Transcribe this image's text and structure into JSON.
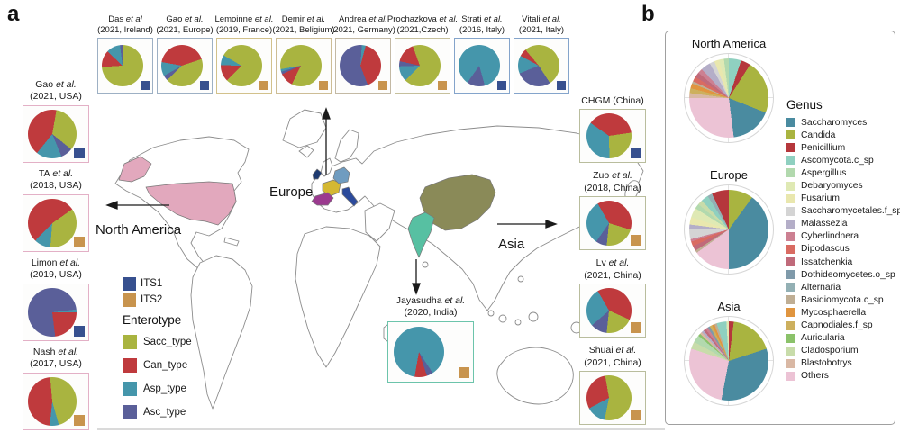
{
  "panels": {
    "a": "a",
    "b": "b"
  },
  "map": {
    "labels": {
      "europe": "Europe",
      "north_america": "North America",
      "asia": "Asia"
    },
    "country_colors": {
      "usa": "#e2a8bd",
      "ireland": "#1e3a70",
      "france": "#d4b832",
      "spain": "#9b3a8f",
      "germany": "#6f9cc0",
      "italy": "#2b4a9b",
      "china": "#8a8a58",
      "india": "#57c0a2"
    }
  },
  "legends": {
    "its": {
      "items": [
        "ITS1",
        "ITS2"
      ]
    },
    "enterotype": {
      "title": "Enterotype",
      "items": [
        "Sacc_type",
        "Can_type",
        "Asp_type",
        "Asc_type"
      ]
    },
    "genus": {
      "title": "Genus",
      "items": [
        "Saccharomyces",
        "Candida",
        "Penicillium",
        "Ascomycota.c_sp",
        "Aspergillus",
        "Debaryomyces",
        "Fusarium",
        "Saccharomycetales.f_sp",
        "Malassezia",
        "Cyberlindnera",
        "Dipodascus",
        "Issatchenkia",
        "Dothideomycetes.o_sp",
        "Alternaria",
        "Basidiomycota.c_sp",
        "Mycosphaerella",
        "Capnodiales.f_sp",
        "Auricularia",
        "Cladosporium",
        "Blastobotrys",
        "Others"
      ]
    }
  },
  "colors": {
    "Sacc_type": "#a9b440",
    "Can_type": "#bf3a3d",
    "Asp_type": "#4596ab",
    "Asc_type": "#5a5f99",
    "ITS1": "#37508f",
    "ITS2": "#c8944e",
    "Saccharomyces": "#4a8ba0",
    "Candida": "#a9b440",
    "Penicillium": "#b5373c",
    "Ascomycota.c_sp": "#8fd0c0",
    "Aspergillus": "#b2d9ae",
    "Debaryomyces": "#dfe9b4",
    "Fusarium": "#e9e7ae",
    "Saccharomycetales.f_sp": "#d4d4d4",
    "Malassezia": "#b4aec8",
    "Cyberlindnera": "#cc8092",
    "Dipodascus": "#d96b62",
    "Issatchenkia": "#c06a7a",
    "Dothideomycetes.o_sp": "#7f9aaa",
    "Alternaria": "#93b0b4",
    "Basidiomycota.c_sp": "#bfae94",
    "Mycosphaerella": "#e0953f",
    "Capnodiales.f_sp": "#cdb05e",
    "Auricularia": "#8bc26a",
    "Cladosporium": "#c8dcaa",
    "Blastobotrys": "#d9b8a4",
    "Others": "#ecc3d5"
  },
  "chart_data": [
    {
      "id": "das-2021-ireland",
      "type": "pie",
      "panel": "a",
      "column": "top",
      "label_name": "Das",
      "label_etal": "et al",
      "label_line2": "(2021, Ireland)",
      "marker": "ITS1",
      "border": "#9db0c4",
      "rotate_deg": 0,
      "unit": "enterotype %",
      "slices": [
        {
          "name": "Sacc_type",
          "value": 74
        },
        {
          "name": "Can_type",
          "value": 13
        },
        {
          "name": "Asp_type",
          "value": 11
        },
        {
          "name": "Asc_type",
          "value": 2
        }
      ]
    },
    {
      "id": "gao-2021-europe",
      "type": "pie",
      "panel": "a",
      "column": "top",
      "label_name": "Gao",
      "label_etal": "et al.",
      "label_line2": "(2021, Europe)",
      "marker": "ITS1",
      "border": "#9db0c4",
      "rotate_deg": -80,
      "unit": "enterotype %",
      "slices": [
        {
          "name": "Can_type",
          "value": 42
        },
        {
          "name": "Sacc_type",
          "value": 43
        },
        {
          "name": "Asc_type",
          "value": 4
        },
        {
          "name": "Asp_type",
          "value": 11
        }
      ]
    },
    {
      "id": "lemoinne-2019-france",
      "type": "pie",
      "panel": "a",
      "column": "top",
      "label_name": "Lemoinne",
      "label_etal": "et al.",
      "label_line2": "(2019, France)",
      "marker": "ITS2",
      "border": "#d2c18b",
      "rotate_deg": -60,
      "unit": "enterotype %",
      "slices": [
        {
          "name": "Sacc_type",
          "value": 79
        },
        {
          "name": "Can_type",
          "value": 13
        },
        {
          "name": "Asp_type",
          "value": 8
        }
      ]
    },
    {
      "id": "demir-2021-belgium",
      "type": "pie",
      "panel": "a",
      "column": "top",
      "label_name": "Demir",
      "label_etal": "et al.",
      "label_line2": "(2021, Beligium)",
      "marker": "ITS2",
      "border": "#cdbd95",
      "rotate_deg": -100,
      "unit": "enterotype %",
      "slices": [
        {
          "name": "Sacc_type",
          "value": 85
        },
        {
          "name": "Can_type",
          "value": 11
        },
        {
          "name": "Asc_type",
          "value": 2
        },
        {
          "name": "Asp_type",
          "value": 2
        }
      ]
    },
    {
      "id": "andrea-2021-germany",
      "type": "pie",
      "panel": "a",
      "column": "top",
      "label_name": "Andrea",
      "label_etal": "et al.",
      "label_line2": "(2021, Germany)",
      "marker": "ITS2",
      "border": "#c3b9a4",
      "rotate_deg": 15,
      "unit": "enterotype %",
      "slices": [
        {
          "name": "Can_type",
          "value": 40
        },
        {
          "name": "Asc_type",
          "value": 57
        },
        {
          "name": "Asp_type",
          "value": 3
        }
      ]
    },
    {
      "id": "prochazkova-2021-czech",
      "type": "pie",
      "panel": "a",
      "column": "top",
      "label_name": "Prochazkova",
      "label_etal": "et al.",
      "label_line2": "(2021,Czech)",
      "marker": "ITS2",
      "border": "#c6c09c",
      "rotate_deg": -20,
      "unit": "enterotype %",
      "slices": [
        {
          "name": "Sacc_type",
          "value": 68
        },
        {
          "name": "Asp_type",
          "value": 12
        },
        {
          "name": "Asc_type",
          "value": 4
        },
        {
          "name": "Can_type",
          "value": 16
        }
      ]
    },
    {
      "id": "strati-2016-italy",
      "type": "pie",
      "panel": "a",
      "column": "top",
      "label_name": "Strati",
      "label_etal": "et al.",
      "label_line2": "(2016, Italy)",
      "marker": "ITS1",
      "border": "#84a4cb",
      "rotate_deg": -145,
      "unit": "enterotype %",
      "slices": [
        {
          "name": "Asp_type",
          "value": 86
        },
        {
          "name": "Asc_type",
          "value": 14
        }
      ]
    },
    {
      "id": "vitali-2021-italy",
      "type": "pie",
      "panel": "a",
      "column": "top",
      "label_name": "Vitali",
      "label_etal": "et al.",
      "label_line2": "(2021, Italy)",
      "marker": "ITS1",
      "border": "#84a4cb",
      "rotate_deg": -40,
      "unit": "enterotype %",
      "slices": [
        {
          "name": "Sacc_type",
          "value": 52
        },
        {
          "name": "Asc_type",
          "value": 28
        },
        {
          "name": "Asp_type",
          "value": 14
        },
        {
          "name": "Can_type",
          "value": 6
        }
      ]
    },
    {
      "id": "gao-2021-usa",
      "type": "pie",
      "panel": "a",
      "column": "left",
      "label_name": "Gao",
      "label_etal": "et al.",
      "label_line2": "(2021, USA)",
      "marker": "ITS1",
      "border": "#e3b0c6",
      "rotate_deg": 10,
      "unit": "enterotype %",
      "slices": [
        {
          "name": "Sacc_type",
          "value": 33
        },
        {
          "name": "Asc_type",
          "value": 8
        },
        {
          "name": "Asp_type",
          "value": 17
        },
        {
          "name": "Can_type",
          "value": 42
        }
      ]
    },
    {
      "id": "ta-2018-usa",
      "type": "pie",
      "panel": "a",
      "column": "left",
      "label_name": "TA",
      "label_etal": "et al.",
      "label_line2": "(2018, USA)",
      "marker": "ITS2",
      "border": "#e3b0c6",
      "rotate_deg": 55,
      "unit": "enterotype %",
      "slices": [
        {
          "name": "Sacc_type",
          "value": 36
        },
        {
          "name": "Asp_type",
          "value": 11
        },
        {
          "name": "Can_type",
          "value": 53
        }
      ]
    },
    {
      "id": "limon-2019-usa",
      "type": "pie",
      "panel": "a",
      "column": "left",
      "label_name": "Limon",
      "label_etal": "et al.",
      "label_line2": "(2019, USA)",
      "marker": "ITS1",
      "border": "#e3b0c6",
      "rotate_deg": 83,
      "unit": "enterotype %",
      "slices": [
        {
          "name": "Asp_type",
          "value": 2
        },
        {
          "name": "Can_type",
          "value": 23
        },
        {
          "name": "Asc_type",
          "value": 75
        }
      ]
    },
    {
      "id": "nash-2017-usa",
      "type": "pie",
      "panel": "a",
      "column": "left",
      "label_name": "Nash",
      "label_etal": "et al.",
      "label_line2": "(2017, USA)",
      "marker": "ITS2",
      "border": "#e3b0c6",
      "rotate_deg": -5,
      "unit": "enterotype %",
      "slices": [
        {
          "name": "Sacc_type",
          "value": 47
        },
        {
          "name": "Asp_type",
          "value": 6
        },
        {
          "name": "Can_type",
          "value": 47
        }
      ]
    },
    {
      "id": "chgm-china",
      "type": "pie",
      "panel": "a",
      "column": "right",
      "label_name": "CHGM (China)",
      "label_etal": "",
      "label_line2": "",
      "marker": "ITS1",
      "border": "#b9bd9d",
      "rotate_deg": -55,
      "unit": "enterotype %",
      "slices": [
        {
          "name": "Can_type",
          "value": 38
        },
        {
          "name": "Sacc_type",
          "value": 27
        },
        {
          "name": "Asp_type",
          "value": 35
        }
      ]
    },
    {
      "id": "zuo-2018-china",
      "type": "pie",
      "panel": "a",
      "column": "right",
      "label_name": "Zuo",
      "label_etal": "et al.",
      "label_line2": "(2018, China)",
      "marker": "ITS2",
      "border": "#b9bd9d",
      "rotate_deg": -30,
      "unit": "enterotype %",
      "slices": [
        {
          "name": "Can_type",
          "value": 38
        },
        {
          "name": "Sacc_type",
          "value": 22
        },
        {
          "name": "Asc_type",
          "value": 8
        },
        {
          "name": "Asp_type",
          "value": 32
        }
      ]
    },
    {
      "id": "lv-2021-china",
      "type": "pie",
      "panel": "a",
      "column": "right",
      "label_name": "Lv",
      "label_etal": "et al.",
      "label_line2": "(2021, China)",
      "marker": "ITS2",
      "border": "#b9bd9d",
      "rotate_deg": -30,
      "unit": "enterotype %",
      "slices": [
        {
          "name": "Can_type",
          "value": 40
        },
        {
          "name": "Sacc_type",
          "value": 20
        },
        {
          "name": "Asc_type",
          "value": 12
        },
        {
          "name": "Asp_type",
          "value": 28
        }
      ]
    },
    {
      "id": "shuai-2021-china",
      "type": "pie",
      "panel": "a",
      "column": "right",
      "label_name": "Shuai",
      "label_etal": "et al.",
      "label_line2": "(2021, China)",
      "marker": "ITS2",
      "border": "#b9bd9d",
      "rotate_deg": -10,
      "unit": "enterotype %",
      "slices": [
        {
          "name": "Sacc_type",
          "value": 56
        },
        {
          "name": "Asp_type",
          "value": 14
        },
        {
          "name": "Can_type",
          "value": 30
        }
      ]
    },
    {
      "id": "jayasudha-2020-india",
      "type": "pie",
      "panel": "a",
      "column": "india",
      "label_name": "Jayasudha",
      "label_etal": "et al.",
      "label_line2": "(2020, India)",
      "marker": "ITS2",
      "border": "#6cc4ab",
      "rotate_deg": -170,
      "unit": "enterotype %",
      "slices": [
        {
          "name": "Asp_type",
          "value": 88
        },
        {
          "name": "Asc_type",
          "value": 4
        },
        {
          "name": "Can_type",
          "value": 8
        }
      ]
    },
    {
      "id": "north-america-genus",
      "type": "pie",
      "panel": "b",
      "column": "panel_b",
      "title": "North America",
      "rotate_deg": 0,
      "unit": "genus relative abundance %",
      "slices": [
        {
          "name": "Ascomycota.c_sp",
          "value": 5
        },
        {
          "name": "Penicillium",
          "value": 4
        },
        {
          "name": "Candida",
          "value": 22
        },
        {
          "name": "Saccharomyces",
          "value": 17
        },
        {
          "name": "Others",
          "value": 27
        },
        {
          "name": "Blastobotrys",
          "value": 2
        },
        {
          "name": "Capnodiales.f_sp",
          "value": 2
        },
        {
          "name": "Mycosphaerella",
          "value": 2
        },
        {
          "name": "Basidiomycota.c_sp",
          "value": 1
        },
        {
          "name": "Dipodascus",
          "value": 2
        },
        {
          "name": "Issatchenkia",
          "value": 2
        },
        {
          "name": "Cyberlindnera",
          "value": 2
        },
        {
          "name": "Malassezia",
          "value": 4
        },
        {
          "name": "Saccharomycetales.f_sp",
          "value": 2
        },
        {
          "name": "Fusarium",
          "value": 2
        },
        {
          "name": "Debaryomyces",
          "value": 2
        },
        {
          "name": "Aspergillus",
          "value": 2
        }
      ]
    },
    {
      "id": "europe-genus",
      "type": "pie",
      "panel": "b",
      "column": "panel_b",
      "title": "Europe",
      "rotate_deg": 0,
      "unit": "genus relative abundance %",
      "slices": [
        {
          "name": "Candida",
          "value": 10
        },
        {
          "name": "Saccharomyces",
          "value": 40
        },
        {
          "name": "Others",
          "value": 15
        },
        {
          "name": "Basidiomycota.c_sp",
          "value": 1
        },
        {
          "name": "Issatchenkia",
          "value": 2
        },
        {
          "name": "Dipodascus",
          "value": 2
        },
        {
          "name": "Cyberlindnera",
          "value": 1
        },
        {
          "name": "Saccharomycetales.f_sp",
          "value": 4
        },
        {
          "name": "Malassezia",
          "value": 2
        },
        {
          "name": "Fusarium",
          "value": 3
        },
        {
          "name": "Debaryomyces",
          "value": 4
        },
        {
          "name": "Aspergillus",
          "value": 2
        },
        {
          "name": "Cladosporium",
          "value": 2
        },
        {
          "name": "Ascomycota.c_sp",
          "value": 3
        },
        {
          "name": "Alternaria",
          "value": 2
        },
        {
          "name": "Penicillium",
          "value": 7
        }
      ]
    },
    {
      "id": "asia-genus",
      "type": "pie",
      "panel": "b",
      "column": "panel_b",
      "title": "Asia",
      "rotate_deg": 0,
      "unit": "genus relative abundance %",
      "slices": [
        {
          "name": "Penicillium",
          "value": 2
        },
        {
          "name": "Candida",
          "value": 18
        },
        {
          "name": "Saccharomyces",
          "value": 33
        },
        {
          "name": "Others",
          "value": 27
        },
        {
          "name": "Cladosporium",
          "value": 3
        },
        {
          "name": "Aspergillus",
          "value": 3
        },
        {
          "name": "Auricularia",
          "value": 1
        },
        {
          "name": "Blastobotrys",
          "value": 1
        },
        {
          "name": "Malassezia",
          "value": 1
        },
        {
          "name": "Issatchenkia",
          "value": 1
        },
        {
          "name": "Cyberlindnera",
          "value": 1
        },
        {
          "name": "Dothideomycetes.o_sp",
          "value": 1
        },
        {
          "name": "Capnodiales.f_sp",
          "value": 1
        },
        {
          "name": "Mycosphaerella",
          "value": 1
        },
        {
          "name": "Basidiomycota.c_sp",
          "value": 1
        },
        {
          "name": "Ascomycota.c_sp",
          "value": 4
        },
        {
          "name": "Debaryomyces",
          "value": 1
        }
      ]
    }
  ]
}
